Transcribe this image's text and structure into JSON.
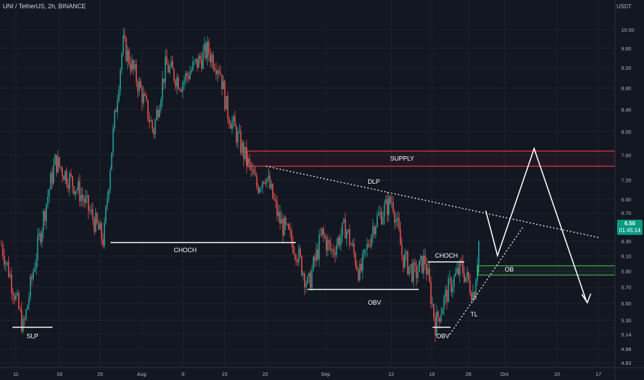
{
  "header": {
    "title": "UNI / TetherUS, 2h, BINANCE",
    "currency": "USDT"
  },
  "price_tag": {
    "price": "6.50",
    "countdown": "01:45:14",
    "color": "#089981"
  },
  "colors": {
    "background": "#131722",
    "up": "#26a69a",
    "down": "#ef5350",
    "supply": "#f23645",
    "ob": "#4caf50",
    "annotation": "#ffffff"
  },
  "chart_data": {
    "type": "candlestick",
    "title": "UNI / TetherUS, 2h, BINANCE",
    "xlabel": "",
    "ylabel": "USDT",
    "y_scale": "log",
    "ylim": [
      4.78,
      10.35
    ],
    "x_ticks": [
      "11",
      "18",
      "25",
      "Aug",
      "8",
      "15",
      "22",
      "Sep",
      "12",
      "19",
      "26",
      "Oct",
      "10",
      "17"
    ],
    "y_ticks": [
      "10.00",
      "9.60",
      "9.20",
      "8.80",
      "8.40",
      "8.00",
      "7.60",
      "7.20",
      "6.90",
      "6.70",
      "6.30",
      "6.10",
      "5.90",
      "5.70",
      "5.50",
      "5.30",
      "5.14",
      "4.98",
      "4.83"
    ],
    "price_path": [
      [
        "11",
        6.25
      ],
      [
        "13",
        5.2
      ],
      [
        "18",
        7.5
      ],
      [
        "22",
        7.0
      ],
      [
        "25",
        6.3
      ],
      [
        "27",
        9.7
      ],
      [
        "Aug",
        8.7
      ],
      [
        "4",
        8.0
      ],
      [
        "6",
        9.25
      ],
      [
        "8",
        8.9
      ],
      [
        "10",
        9.55
      ],
      [
        "12",
        9.2
      ],
      [
        "15",
        8.4
      ],
      [
        "18",
        7.5
      ],
      [
        "20",
        7.1
      ],
      [
        "22",
        7.3
      ],
      [
        "24",
        6.6
      ],
      [
        "27",
        6.2
      ],
      [
        "29",
        5.7
      ],
      [
        "31",
        6.4
      ],
      [
        "Sep 2",
        6.15
      ],
      [
        "5",
        6.5
      ],
      [
        "7",
        5.85
      ],
      [
        "9",
        6.55
      ],
      [
        "12",
        6.9
      ],
      [
        "14",
        6.1
      ],
      [
        "16",
        5.85
      ],
      [
        "18",
        6.05
      ],
      [
        "19",
        5.25
      ],
      [
        "21",
        5.7
      ],
      [
        "24",
        5.95
      ],
      [
        "26",
        5.6
      ],
      [
        "27",
        6.5
      ]
    ],
    "annotations": {
      "zones": [
        {
          "label": "SUPPLY",
          "price_from": 7.42,
          "price_to": 7.67
        },
        {
          "label": "OB",
          "price_from": 5.85,
          "price_to": 5.97
        }
      ],
      "levels": [
        {
          "label": "SLP",
          "price": 5.22
        },
        {
          "label": "CHOCH",
          "price": 6.28
        },
        {
          "label": "OBV",
          "price": 5.67
        },
        {
          "label": "CHOCH",
          "price": 6.02
        },
        {
          "label": "OBV",
          "price": 5.22
        }
      ],
      "trendlines": [
        {
          "label": "DLP",
          "from_price": 7.42,
          "to_price": 6.35
        },
        {
          "label": "TL",
          "from_price": 5.14,
          "to_price": 6.5
        }
      ]
    }
  }
}
